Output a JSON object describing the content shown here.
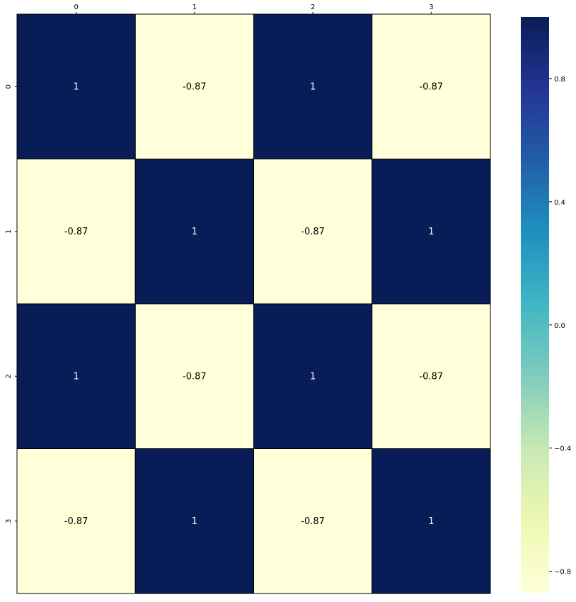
{
  "chart_data": {
    "type": "heatmap",
    "x_tick_labels": [
      "0",
      "1",
      "2",
      "3"
    ],
    "y_tick_labels": [
      "0",
      "1",
      "2",
      "3"
    ],
    "x_tick_position": "top",
    "matrix": [
      [
        1,
        -0.87,
        1,
        -0.87
      ],
      [
        -0.87,
        1,
        -0.87,
        1
      ],
      [
        1,
        -0.87,
        1,
        -0.87
      ],
      [
        -0.87,
        1,
        -0.87,
        1
      ]
    ],
    "annotations": [
      [
        "1",
        "-0.87",
        "1",
        "-0.87"
      ],
      [
        "-0.87",
        "1",
        "-0.87",
        "1"
      ],
      [
        "1",
        "-0.87",
        "1",
        "-0.87"
      ],
      [
        "-0.87",
        "1",
        "-0.87",
        "1"
      ]
    ],
    "colormap": "YlGnBu",
    "colorbar": {
      "range": [
        -0.87,
        1
      ],
      "ticks": [
        0.8,
        0.4,
        0.0,
        -0.4,
        -0.8
      ],
      "tick_labels": [
        "0.8",
        "0.4",
        "0.0",
        "−0.4",
        "−0.8"
      ]
    },
    "colors": {
      "high": "#081d58",
      "low": "#ffffd9",
      "high_text": "#ffffff",
      "low_text": "#000000"
    },
    "grid": false
  }
}
